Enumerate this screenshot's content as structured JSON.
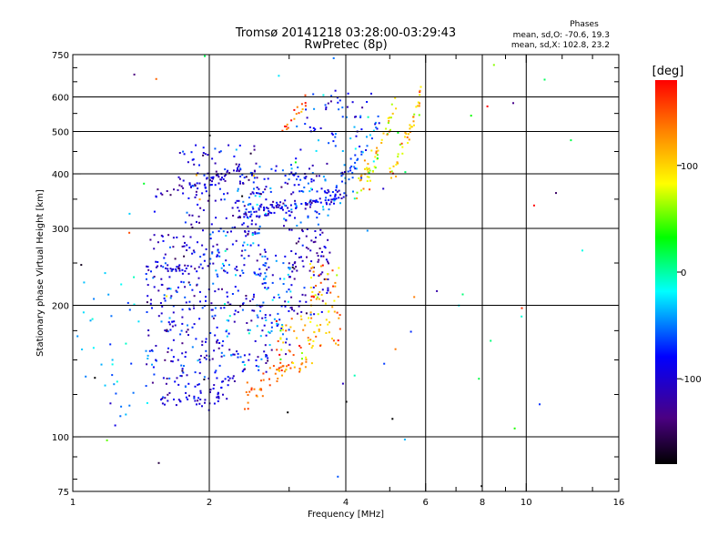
{
  "chart_data": {
    "type": "scatter",
    "title": "Tromsø 20141218 03:28:00-03:29:43",
    "subtitle": "RwPretec (8p)",
    "xlabel": "Frequency [MHz]",
    "ylabel": "Stationary phase Virtual Height [km]",
    "x_scale": "log",
    "y_scale": "log",
    "xlim": [
      1,
      16
    ],
    "ylim": [
      75,
      750
    ],
    "x_ticks": [
      1,
      2,
      4,
      6,
      8,
      10,
      16
    ],
    "x_tick_labels": [
      "1",
      "2",
      "4",
      "6",
      "8",
      "10",
      "16"
    ],
    "x_minor_ticks": [
      3,
      5,
      7,
      9,
      12,
      14
    ],
    "y_ticks": [
      75,
      100,
      200,
      300,
      400,
      500,
      600,
      750
    ],
    "y_tick_labels": [
      "75",
      "100",
      "200",
      "300",
      "400",
      "500",
      "600",
      "750"
    ],
    "y_minor_ticks": [
      80,
      90,
      125,
      150,
      175,
      250,
      350,
      450,
      550,
      650,
      700
    ],
    "x_grid": [
      2,
      4,
      6,
      8,
      10
    ],
    "y_grid": [
      100,
      200,
      300,
      400,
      500,
      600
    ],
    "grid": true,
    "colorbar": {
      "label": "[deg]",
      "range": [
        -180,
        180
      ],
      "ticks": [
        100,
        0,
        -100
      ],
      "tick_labels": [
        "100",
        "0",
        "-100"
      ]
    },
    "stats": {
      "heading": "Phases",
      "line_o": "mean, sd,O: -70.6, 19.3",
      "line_x": "mean, sd,X: 102.8, 23.2"
    },
    "clusters": [
      {
        "kind": "trace",
        "f_start": 1.52,
        "f_end": 2.4,
        "h_start": 360,
        "h_end": 420,
        "phase": -110,
        "phase_sd": 20,
        "n": 55,
        "h_sd": 6
      },
      {
        "kind": "trace",
        "f_start": 2.35,
        "f_end": 4.2,
        "h_start": 330,
        "h_end": 360,
        "phase": -85,
        "phase_sd": 30,
        "n": 90,
        "h_sd": 7
      },
      {
        "kind": "trace",
        "f_start": 3.6,
        "f_end": 4.8,
        "h_start": 355,
        "h_end": 560,
        "phase": -60,
        "phase_sd": 20,
        "n": 45,
        "h_sd": 10
      },
      {
        "kind": "trace",
        "f_start": 4.2,
        "f_end": 5.2,
        "h_start": 370,
        "h_end": 620,
        "phase": 100,
        "phase_sd": 30,
        "n": 55,
        "h_sd": 15
      },
      {
        "kind": "trace",
        "f_start": 5.0,
        "f_end": 5.9,
        "h_start": 410,
        "h_end": 640,
        "phase": 110,
        "phase_sd": 30,
        "n": 45,
        "h_sd": 15
      },
      {
        "kind": "trace",
        "f_start": 2.9,
        "f_end": 3.3,
        "h_start": 510,
        "h_end": 600,
        "phase": 150,
        "phase_sd": 20,
        "n": 18,
        "h_sd": 10
      },
      {
        "kind": "box",
        "f_min": 1.7,
        "f_max": 2.6,
        "h_min": 290,
        "h_max": 470,
        "phase": -95,
        "phase_sd": 25,
        "n": 120
      },
      {
        "kind": "box",
        "f_min": 2.3,
        "f_max": 3.7,
        "h_min": 300,
        "h_max": 420,
        "phase": -80,
        "phase_sd": 30,
        "n": 130
      },
      {
        "kind": "box",
        "f_min": 3.1,
        "f_max": 4.6,
        "h_min": 390,
        "h_max": 620,
        "phase": -75,
        "phase_sd": 30,
        "n": 70
      },
      {
        "kind": "trace",
        "f_start": 1.55,
        "f_end": 2.2,
        "h_start": 120,
        "h_end": 125,
        "phase": -100,
        "phase_sd": 15,
        "n": 40,
        "h_sd": 3
      },
      {
        "kind": "trace",
        "f_start": 2.0,
        "f_end": 2.3,
        "h_start": 122,
        "h_end": 145,
        "phase": -90,
        "phase_sd": 20,
        "n": 20,
        "h_sd": 4
      },
      {
        "kind": "trace",
        "f_start": 1.45,
        "f_end": 2.05,
        "h_start": 240,
        "h_end": 250,
        "phase": -95,
        "phase_sd": 20,
        "n": 25,
        "h_sd": 3
      },
      {
        "kind": "box",
        "f_min": 1.45,
        "f_max": 2.1,
        "h_min": 130,
        "h_max": 290,
        "phase": -90,
        "phase_sd": 30,
        "n": 220
      },
      {
        "kind": "box",
        "f_min": 2.0,
        "f_max": 2.7,
        "h_min": 140,
        "h_max": 300,
        "phase": -80,
        "phase_sd": 30,
        "n": 170
      },
      {
        "kind": "box",
        "f_min": 2.6,
        "f_max": 3.05,
        "h_min": 150,
        "h_max": 260,
        "phase": -65,
        "phase_sd": 30,
        "n": 70
      },
      {
        "kind": "box",
        "f_min": 3.0,
        "f_max": 3.7,
        "h_min": 190,
        "h_max": 300,
        "phase": -110,
        "phase_sd": 20,
        "n": 90
      },
      {
        "kind": "trace",
        "f_start": 2.4,
        "f_end": 3.0,
        "h_start": 125,
        "h_end": 155,
        "phase": 145,
        "phase_sd": 15,
        "n": 35,
        "h_sd": 4
      },
      {
        "kind": "box",
        "f_min": 2.8,
        "f_max": 3.4,
        "h_min": 140,
        "h_max": 190,
        "phase": 120,
        "phase_sd": 30,
        "n": 55
      },
      {
        "kind": "box",
        "f_min": 3.3,
        "f_max": 3.9,
        "h_min": 160,
        "h_max": 250,
        "phase": 115,
        "phase_sd": 30,
        "n": 70
      },
      {
        "kind": "box",
        "f_min": 1.0,
        "f_max": 1.5,
        "h_min": 110,
        "h_max": 240,
        "phase": -45,
        "phase_sd": 20,
        "n": 40
      },
      {
        "kind": "box",
        "f_min": 1.0,
        "f_max": 16,
        "h_min": 75,
        "h_max": 750,
        "phase": -40,
        "phase_sd": 120,
        "n": 60
      }
    ]
  }
}
